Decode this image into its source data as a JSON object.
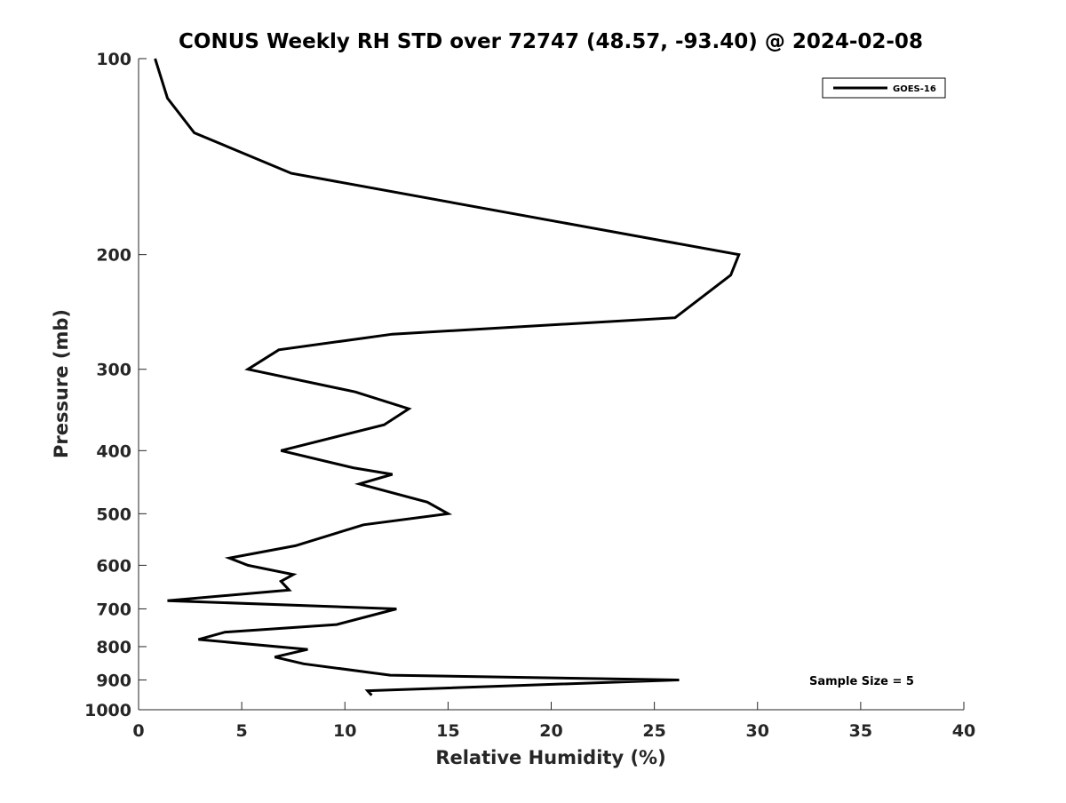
{
  "chart_data": {
    "type": "line",
    "title": "CONUS Weekly RH STD over 72747 (48.57, -93.40) @ 2024-02-08",
    "xlabel": "Relative Humidity (%)",
    "ylabel": "Pressure (mb)",
    "xlim": [
      0,
      40
    ],
    "ylim": [
      100,
      1000
    ],
    "y_scale": "log",
    "y_reversed": true,
    "x_ticks": [
      "0",
      "5",
      "10",
      "15",
      "20",
      "25",
      "30",
      "35",
      "40"
    ],
    "y_ticks": [
      "100",
      "200",
      "300",
      "400",
      "500",
      "600",
      "700",
      "800",
      "900",
      "1000"
    ],
    "grid": false,
    "legend_position": "top-right",
    "series": [
      {
        "name": "GOES-16",
        "color": "#000000",
        "points": [
          {
            "p": 100,
            "rh": 0.8
          },
          {
            "p": 115,
            "rh": 1.4
          },
          {
            "p": 130,
            "rh": 2.7
          },
          {
            "p": 150,
            "rh": 7.4
          },
          {
            "p": 200,
            "rh": 29.1
          },
          {
            "p": 215,
            "rh": 28.7
          },
          {
            "p": 250,
            "rh": 26.0
          },
          {
            "p": 265,
            "rh": 12.3
          },
          {
            "p": 280,
            "rh": 6.8
          },
          {
            "p": 300,
            "rh": 5.3
          },
          {
            "p": 325,
            "rh": 10.5
          },
          {
            "p": 345,
            "rh": 13.1
          },
          {
            "p": 365,
            "rh": 11.9
          },
          {
            "p": 400,
            "rh": 6.9
          },
          {
            "p": 425,
            "rh": 10.4
          },
          {
            "p": 435,
            "rh": 12.3
          },
          {
            "p": 450,
            "rh": 10.7
          },
          {
            "p": 480,
            "rh": 14.0
          },
          {
            "p": 500,
            "rh": 15.0
          },
          {
            "p": 520,
            "rh": 10.9
          },
          {
            "p": 560,
            "rh": 7.6
          },
          {
            "p": 585,
            "rh": 4.4
          },
          {
            "p": 600,
            "rh": 5.3
          },
          {
            "p": 620,
            "rh": 7.5
          },
          {
            "p": 635,
            "rh": 6.9
          },
          {
            "p": 655,
            "rh": 7.3
          },
          {
            "p": 680,
            "rh": 1.4
          },
          {
            "p": 700,
            "rh": 12.5
          },
          {
            "p": 740,
            "rh": 9.6
          },
          {
            "p": 760,
            "rh": 4.2
          },
          {
            "p": 780,
            "rh": 2.9
          },
          {
            "p": 808,
            "rh": 8.2
          },
          {
            "p": 830,
            "rh": 6.6
          },
          {
            "p": 850,
            "rh": 8.0
          },
          {
            "p": 885,
            "rh": 12.2
          },
          {
            "p": 900,
            "rh": 26.2
          },
          {
            "p": 935,
            "rh": 11.1
          },
          {
            "p": 950,
            "rh": 11.3
          }
        ]
      }
    ],
    "annotations": [
      {
        "text": "Sample Size = 5"
      }
    ]
  }
}
